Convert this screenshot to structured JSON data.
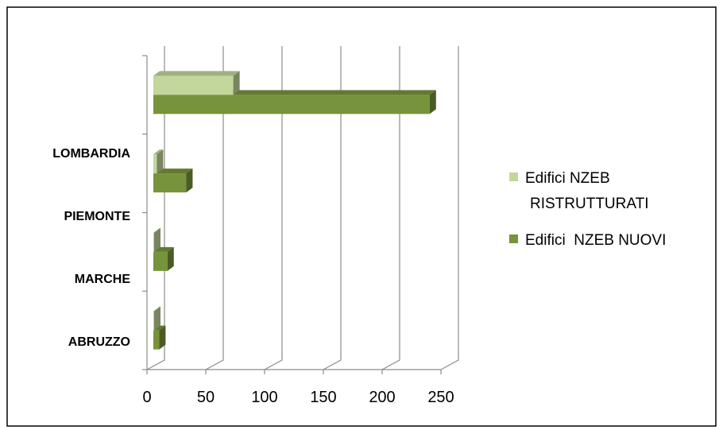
{
  "chart_data": {
    "type": "bar",
    "orientation": "horizontal",
    "title": "",
    "xlabel": "",
    "ylabel": "",
    "categories": [
      "ABRUZZO",
      "MARCHE",
      "PIEMONTE",
      "LOMBARDIA"
    ],
    "xlim": [
      0,
      250
    ],
    "x_ticks": [
      "0",
      "50",
      "100",
      "150",
      "200",
      "250"
    ],
    "grid": "vertical",
    "legend_position": "right",
    "series": [
      {
        "name": "Edifici  NZEB NUOVI",
        "color": "#77933C",
        "values": [
          5,
          12,
          28,
          235
        ]
      },
      {
        "name": "Edifici NZEB RISTRUTTURATI",
        "legend_lines": [
          "Edifici NZEB",
          "RISTRUTTURATI"
        ],
        "color": "#C3D69B",
        "values": [
          0,
          0,
          3,
          68
        ]
      }
    ]
  }
}
